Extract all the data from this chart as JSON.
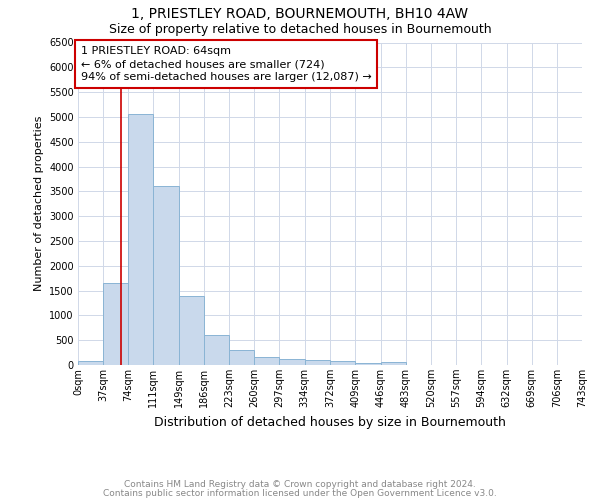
{
  "title": "1, PRIESTLEY ROAD, BOURNEMOUTH, BH10 4AW",
  "subtitle": "Size of property relative to detached houses in Bournemouth",
  "xlabel": "Distribution of detached houses by size in Bournemouth",
  "ylabel": "Number of detached properties",
  "bin_edges": [
    0,
    37,
    74,
    111,
    149,
    186,
    223,
    260,
    297,
    334,
    372,
    409,
    446,
    483,
    520,
    557,
    594,
    632,
    669,
    706,
    743
  ],
  "bar_heights": [
    75,
    1650,
    5050,
    3600,
    1400,
    600,
    300,
    160,
    130,
    110,
    75,
    45,
    60,
    5,
    2,
    2,
    1,
    1,
    1,
    1
  ],
  "bar_color": "#c9d9ec",
  "bar_edge_color": "#8ab4d4",
  "grid_color": "#d0d8e8",
  "property_size": 64,
  "red_line_color": "#cc0000",
  "annotation_text": "1 PRIESTLEY ROAD: 64sqm\n← 6% of detached houses are smaller (724)\n94% of semi-detached houses are larger (12,087) →",
  "annotation_box_color": "#cc0000",
  "ylim": [
    0,
    6500
  ],
  "yticks": [
    0,
    500,
    1000,
    1500,
    2000,
    2500,
    3000,
    3500,
    4000,
    4500,
    5000,
    5500,
    6000,
    6500
  ],
  "footnote1": "Contains HM Land Registry data © Crown copyright and database right 2024.",
  "footnote2": "Contains public sector information licensed under the Open Government Licence v3.0.",
  "background_color": "#ffffff",
  "title_fontsize": 10,
  "subtitle_fontsize": 9,
  "xlabel_fontsize": 9,
  "ylabel_fontsize": 8,
  "tick_fontsize": 7,
  "annotation_fontsize": 8,
  "footnote_fontsize": 6.5
}
